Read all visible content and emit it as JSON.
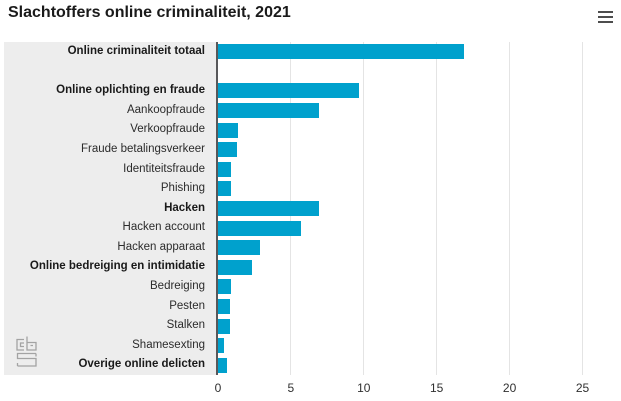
{
  "header": {
    "title": "Slachtoffers online criminaliteit, 2021"
  },
  "menu": {
    "icon": "hamburger-menu-icon"
  },
  "logo": {
    "icon": "cbs-logo"
  },
  "chart_data": {
    "type": "bar",
    "orientation": "horizontal",
    "title": "Slachtoffers online criminaliteit, 2021",
    "categories": [
      "Online criminaliteit totaal",
      "Online oplichting en fraude",
      "Aankoopfraude",
      "Verkoopfraude",
      "Fraude betalingsverkeer",
      "Identiteitsfraude",
      "Phishing",
      "Hacken",
      "Hacken account",
      "Hacken apparaat",
      "Online bedreiging en intimidatie",
      "Bedreiging",
      "Pesten",
      "Stalken",
      "Shamesexting",
      "Overige online delicten"
    ],
    "values": [
      16.9,
      9.7,
      6.9,
      1.4,
      1.3,
      0.9,
      0.9,
      6.9,
      5.7,
      2.9,
      2.3,
      0.9,
      0.8,
      0.8,
      0.4,
      0.6
    ],
    "bold": [
      true,
      true,
      false,
      false,
      false,
      false,
      false,
      true,
      false,
      false,
      true,
      false,
      false,
      false,
      false,
      true
    ],
    "spacer_after_index": 0,
    "x_ticks": [
      0,
      5,
      10,
      15,
      20,
      25
    ],
    "xlim": [
      0,
      27.6
    ],
    "grid": true,
    "legend": null,
    "bar_color": "#00a1cd",
    "axis_color": "#58585a",
    "gridline_color": "#e4e4e4",
    "panel_color": "#ededed"
  }
}
